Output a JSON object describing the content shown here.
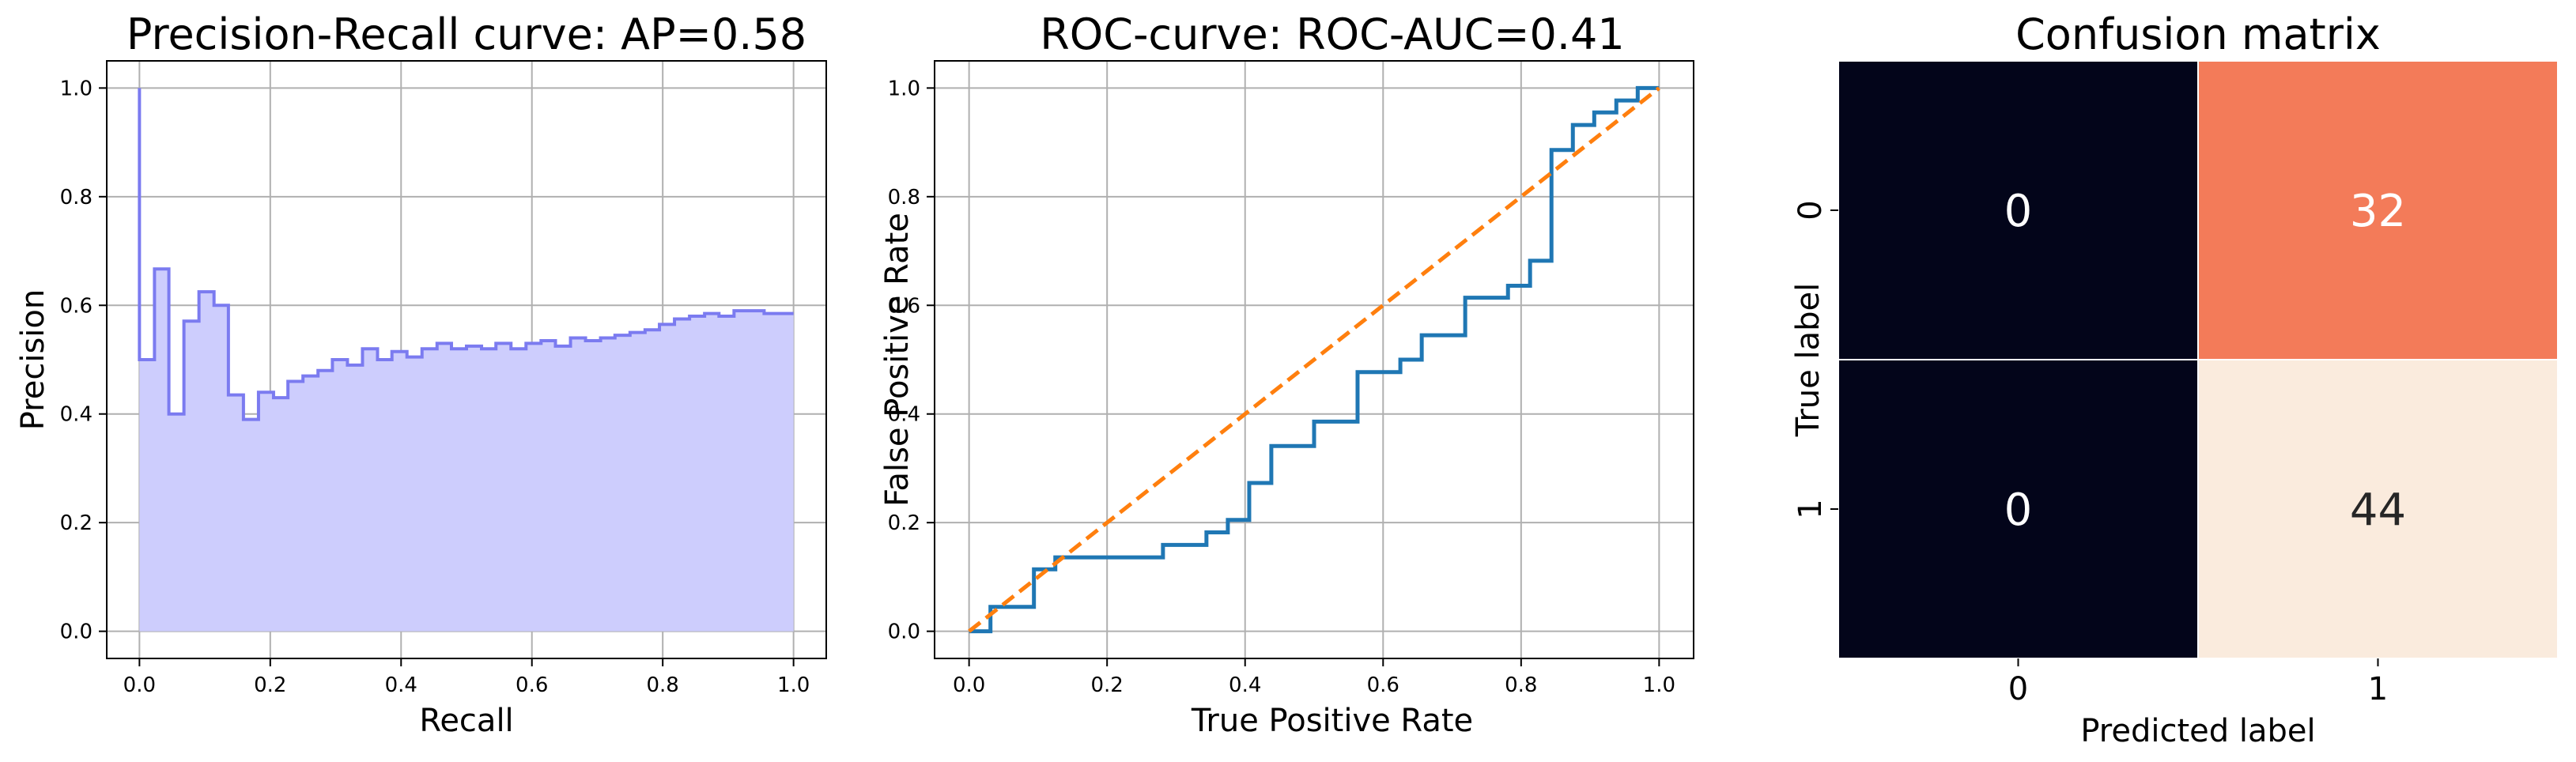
{
  "chart_data": [
    {
      "type": "area",
      "title": "Precision-Recall curve: AP=0.58",
      "xlabel": "Recall",
      "ylabel": "Precision",
      "xlim": [
        -0.05,
        1.05
      ],
      "ylim": [
        -0.05,
        1.05
      ],
      "xticks": [
        "0.0",
        "0.2",
        "0.4",
        "0.6",
        "0.8",
        "1.0"
      ],
      "yticks": [
        "0.0",
        "0.2",
        "0.4",
        "0.6",
        "0.8",
        "1.0"
      ],
      "grid": true,
      "color": "#7b7bf0",
      "fill_color": "#cdcdfd",
      "step": "post",
      "x": [
        0.0,
        0.0,
        0.023,
        0.045,
        0.068,
        0.091,
        0.114,
        0.136,
        0.159,
        0.182,
        0.205,
        0.227,
        0.25,
        0.273,
        0.295,
        0.318,
        0.341,
        0.364,
        0.386,
        0.409,
        0.432,
        0.455,
        0.477,
        0.5,
        0.523,
        0.545,
        0.568,
        0.591,
        0.614,
        0.636,
        0.659,
        0.682,
        0.705,
        0.727,
        0.75,
        0.773,
        0.795,
        0.818,
        0.841,
        0.864,
        0.886,
        0.909,
        0.932,
        0.955,
        0.977,
        1.0
      ],
      "y": [
        1.0,
        0.5,
        0.667,
        0.4,
        0.571,
        0.625,
        0.6,
        0.435,
        0.39,
        0.44,
        0.43,
        0.46,
        0.47,
        0.48,
        0.5,
        0.49,
        0.52,
        0.5,
        0.515,
        0.505,
        0.52,
        0.53,
        0.52,
        0.525,
        0.52,
        0.53,
        0.52,
        0.53,
        0.535,
        0.525,
        0.54,
        0.535,
        0.54,
        0.545,
        0.55,
        0.555,
        0.565,
        0.575,
        0.58,
        0.585,
        0.58,
        0.59,
        0.59,
        0.585,
        0.585,
        0.585
      ]
    },
    {
      "type": "line",
      "title": "ROC-curve: ROC-AUC=0.41",
      "xlabel": "True Positive Rate",
      "ylabel": "False Positive Rate",
      "xlim": [
        -0.05,
        1.05
      ],
      "ylim": [
        -0.05,
        1.05
      ],
      "xticks": [
        "0.0",
        "0.2",
        "0.4",
        "0.6",
        "0.8",
        "1.0"
      ],
      "yticks": [
        "0.0",
        "0.2",
        "0.4",
        "0.6",
        "0.8",
        "1.0"
      ],
      "grid": true,
      "series": [
        {
          "color": "#1f77b4",
          "style": "solid",
          "x": [
            0.0,
            0.031,
            0.031,
            0.094,
            0.094,
            0.125,
            0.125,
            0.281,
            0.281,
            0.344,
            0.344,
            0.375,
            0.375,
            0.406,
            0.406,
            0.438,
            0.438,
            0.5,
            0.5,
            0.563,
            0.563,
            0.625,
            0.625,
            0.656,
            0.656,
            0.719,
            0.719,
            0.781,
            0.781,
            0.813,
            0.813,
            0.844,
            0.844,
            0.875,
            0.875,
            0.906,
            0.906,
            0.938,
            0.938,
            0.969,
            0.969,
            1.0
          ],
          "y": [
            0.0,
            0.0,
            0.045,
            0.045,
            0.114,
            0.114,
            0.136,
            0.136,
            0.159,
            0.159,
            0.182,
            0.182,
            0.205,
            0.205,
            0.273,
            0.273,
            0.341,
            0.341,
            0.386,
            0.386,
            0.477,
            0.477,
            0.5,
            0.5,
            0.545,
            0.545,
            0.614,
            0.614,
            0.636,
            0.636,
            0.682,
            0.682,
            0.886,
            0.886,
            0.932,
            0.932,
            0.955,
            0.955,
            0.977,
            0.977,
            1.0,
            1.0
          ]
        },
        {
          "color": "#ff7f0e",
          "style": "dashed",
          "x": [
            0.0,
            1.0
          ],
          "y": [
            0.0,
            1.0
          ]
        }
      ]
    },
    {
      "type": "heatmap",
      "title": "Confusion matrix",
      "xlabel": "Predicted label",
      "ylabel": "True label",
      "x_categories": [
        "0",
        "1"
      ],
      "y_categories": [
        "0",
        "1"
      ],
      "values": [
        [
          0,
          32
        ],
        [
          0,
          44
        ]
      ],
      "cell_colors": [
        [
          "#03051a",
          "#f37b59"
        ],
        [
          "#03051a",
          "#faebdd"
        ]
      ],
      "text_colors": [
        [
          "#ffffff",
          "#ffffff"
        ],
        [
          "#ffffff",
          "#262626"
        ]
      ]
    }
  ]
}
